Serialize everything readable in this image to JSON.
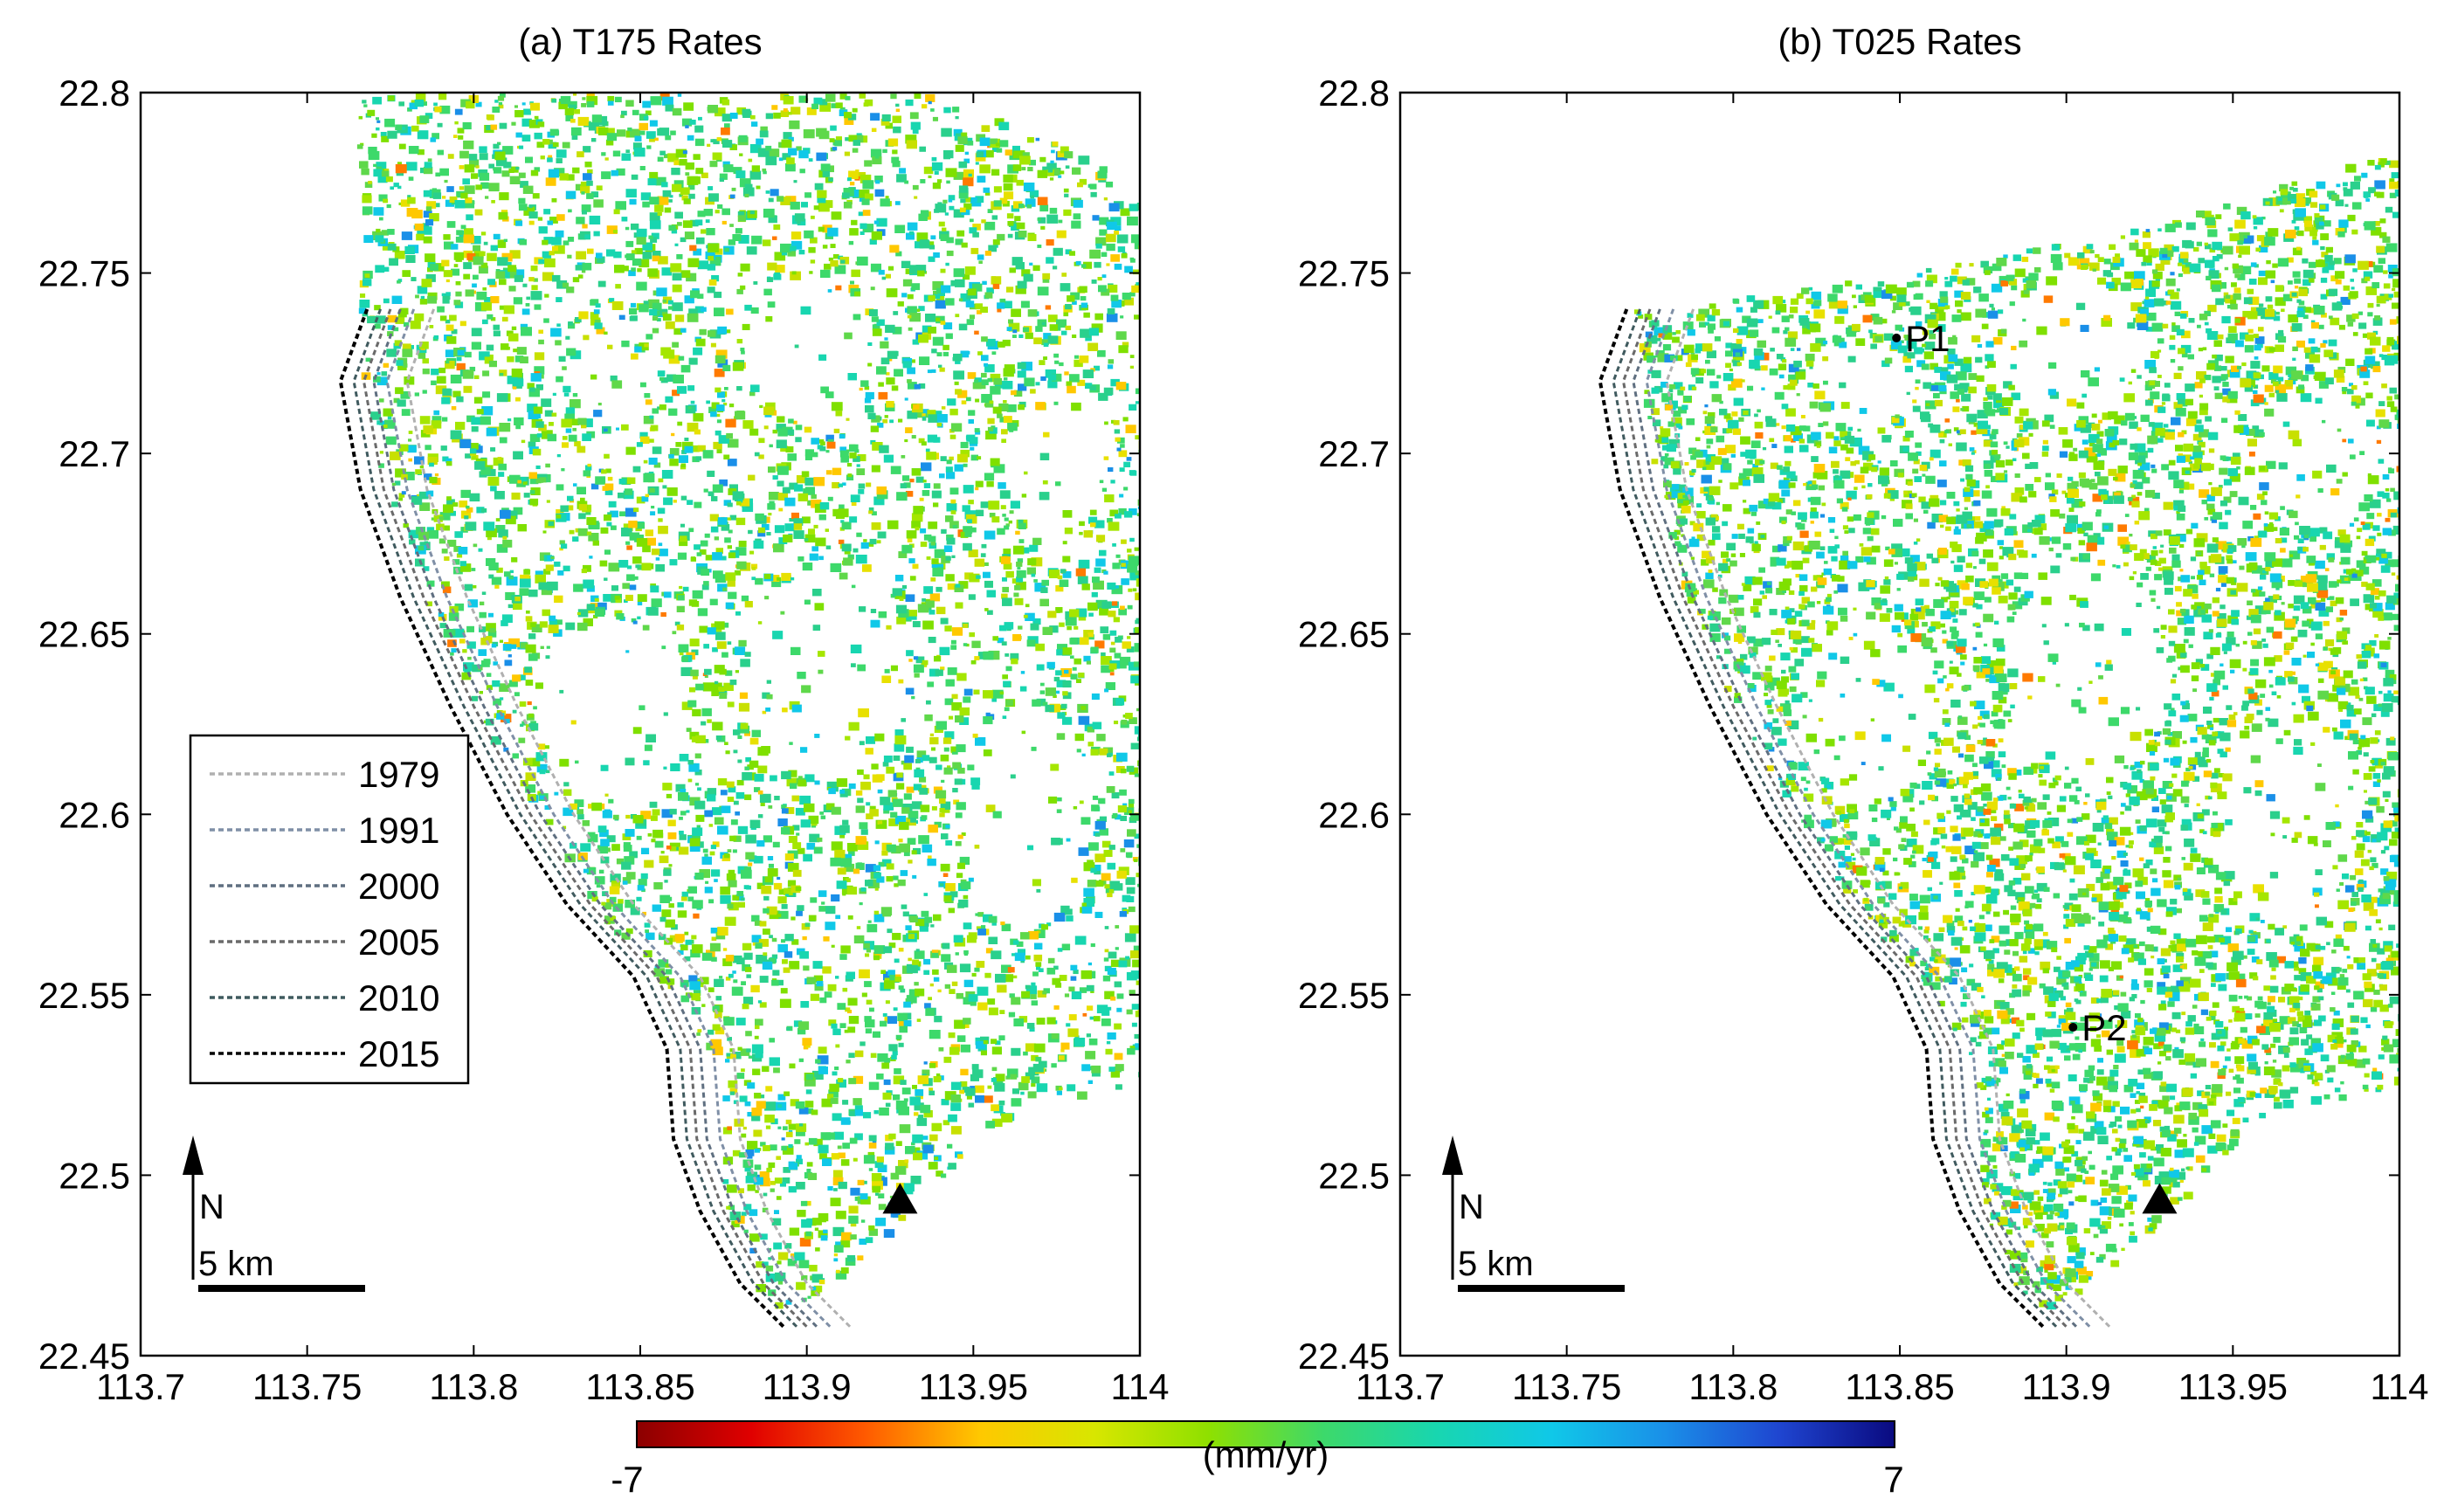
{
  "chart_data": [
    {
      "type": "scatter",
      "title": "(a) T175 Rates",
      "xlim": [
        113.7,
        114
      ],
      "ylim": [
        22.45,
        22.8
      ],
      "xticks": [
        "113.7",
        "113.75",
        "113.8",
        "113.85",
        "113.9",
        "113.95",
        "114"
      ],
      "yticks": [
        "22.45",
        "22.5",
        "22.55",
        "22.6",
        "22.65",
        "22.7",
        "22.75",
        "22.8"
      ],
      "legend": {
        "placement": "middle-left",
        "entries": [
          {
            "label": "1979",
            "color": "#b0b0b0"
          },
          {
            "label": "1991",
            "color": "#7f8fa6"
          },
          {
            "label": "2000",
            "color": "#5f6f80"
          },
          {
            "label": "2005",
            "color": "#6a6a6a"
          },
          {
            "label": "2010",
            "color": "#3f5a5e"
          },
          {
            "label": "2015",
            "color": "#000000"
          }
        ]
      },
      "north_arrow": "N",
      "scale_bar": "5 km",
      "reference_point": {
        "lon": 113.928,
        "lat": 22.493,
        "marker": "triangle"
      },
      "annotations": []
    },
    {
      "type": "scatter",
      "title": "(b) T025 Rates",
      "xlim": [
        113.7,
        114
      ],
      "ylim": [
        22.45,
        22.8
      ],
      "xticks": [
        "113.7",
        "113.75",
        "113.8",
        "113.85",
        "113.9",
        "113.95",
        "114"
      ],
      "yticks": [
        "22.45",
        "22.5",
        "22.55",
        "22.6",
        "22.65",
        "22.7",
        "22.75",
        "22.8"
      ],
      "north_arrow": "N",
      "scale_bar": "5 km",
      "reference_point": {
        "lon": 113.928,
        "lat": 22.493,
        "marker": "triangle"
      },
      "annotations": [
        {
          "label": "P1",
          "lon": 113.849,
          "lat": 22.732
        },
        {
          "label": "P2",
          "lon": 113.902,
          "lat": 22.541
        }
      ]
    }
  ],
  "colorbar": {
    "min_label": "-7",
    "max_label": "7",
    "unit_label": "(mm/yr)",
    "colors": [
      "#8b0000",
      "#e00000",
      "#ff5a00",
      "#ffc800",
      "#d8e600",
      "#8fe000",
      "#3dd96a",
      "#18d6b0",
      "#10c8e8",
      "#1a8fe8",
      "#1f45d0",
      "#0a0a80"
    ]
  }
}
